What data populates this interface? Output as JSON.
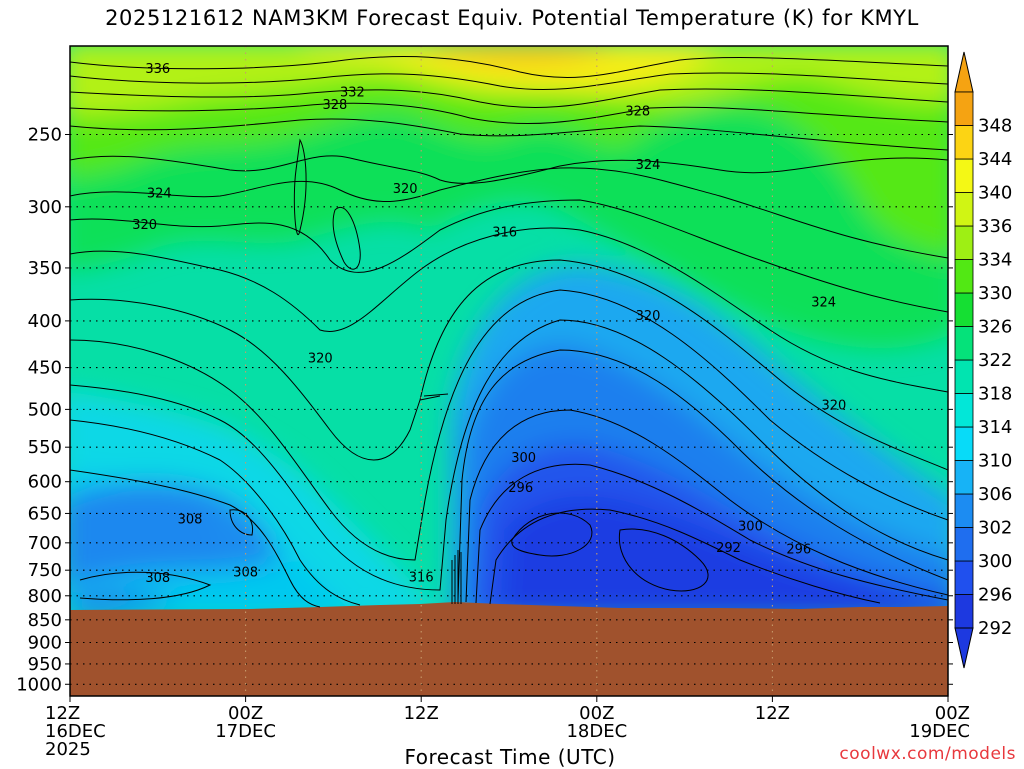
{
  "title": "2025121612 NAM3KM Forecast Equiv. Potential Temperature (K) for KMYL",
  "credit": "coolwx.com/models",
  "chart_data": {
    "type": "heatmap",
    "title": "2025121612 NAM3KM Forecast Equiv. Potential Temperature (K) for KMYL",
    "xlabel": "Forecast Time (UTC)",
    "ylabel": "",
    "x_ticks": [
      {
        "hour": 0,
        "lines": [
          "12Z",
          "16DEC",
          "2025"
        ]
      },
      {
        "hour": 12,
        "lines": [
          "00Z",
          "17DEC"
        ]
      },
      {
        "hour": 24,
        "lines": [
          "12Z"
        ]
      },
      {
        "hour": 36,
        "lines": [
          "00Z",
          "18DEC"
        ]
      },
      {
        "hour": 48,
        "lines": [
          "12Z"
        ]
      },
      {
        "hour": 60,
        "lines": [
          "00Z",
          "19DEC"
        ]
      }
    ],
    "xlim_hours": [
      0,
      60
    ],
    "y_ticks": [
      250,
      300,
      350,
      400,
      450,
      500,
      550,
      600,
      650,
      700,
      750,
      800,
      850,
      900,
      950,
      1000
    ],
    "ylim": [
      1030,
      200
    ],
    "y_scale": "log-pressure",
    "grid": true,
    "surface_pressure_hpa": 850,
    "colorbar_labels": [
      "292",
      "296",
      "300",
      "302",
      "306",
      "310",
      "314",
      "318",
      "322",
      "326",
      "330",
      "334",
      "336",
      "340",
      "344",
      "348"
    ],
    "colorbar_colors": [
      "#1d39e0",
      "#2050ee",
      "#1f6eef",
      "#1c8cf2",
      "#17b3f6",
      "#08dbf8",
      "#02e7d8",
      "#01e4b0",
      "#05e27a",
      "#15df33",
      "#52e814",
      "#9eef14",
      "#d0f514",
      "#f4f815",
      "#fcd414",
      "#f5a312"
    ],
    "contour_labels": [
      {
        "hour": 6.0,
        "p": 212,
        "text": "336"
      },
      {
        "hour": 19.3,
        "p": 225,
        "text": "332"
      },
      {
        "hour": 18.1,
        "p": 232,
        "text": "328"
      },
      {
        "hour": 38.8,
        "p": 236,
        "text": "328"
      },
      {
        "hour": 6.1,
        "p": 290,
        "text": "324"
      },
      {
        "hour": 39.5,
        "p": 270,
        "text": "324"
      },
      {
        "hour": 51.5,
        "p": 382,
        "text": "324"
      },
      {
        "hour": 5.1,
        "p": 314,
        "text": "320"
      },
      {
        "hour": 22.9,
        "p": 287,
        "text": "320"
      },
      {
        "hour": 17.1,
        "p": 440,
        "text": "320"
      },
      {
        "hour": 39.5,
        "p": 395,
        "text": "320"
      },
      {
        "hour": 52.2,
        "p": 495,
        "text": "320"
      },
      {
        "hour": 29.7,
        "p": 320,
        "text": "316"
      },
      {
        "hour": 24.0,
        "p": 764,
        "text": "316"
      },
      {
        "hour": 31.0,
        "p": 565,
        "text": "300"
      },
      {
        "hour": 30.8,
        "p": 610,
        "text": "296"
      },
      {
        "hour": 46.5,
        "p": 672,
        "text": "300"
      },
      {
        "hour": 45.0,
        "p": 709,
        "text": "292"
      },
      {
        "hour": 49.8,
        "p": 712,
        "text": "296"
      },
      {
        "hour": 8.2,
        "p": 660,
        "text": "308"
      },
      {
        "hour": 6.0,
        "p": 765,
        "text": "308"
      },
      {
        "hour": 12.0,
        "p": 754,
        "text": "308"
      }
    ]
  }
}
